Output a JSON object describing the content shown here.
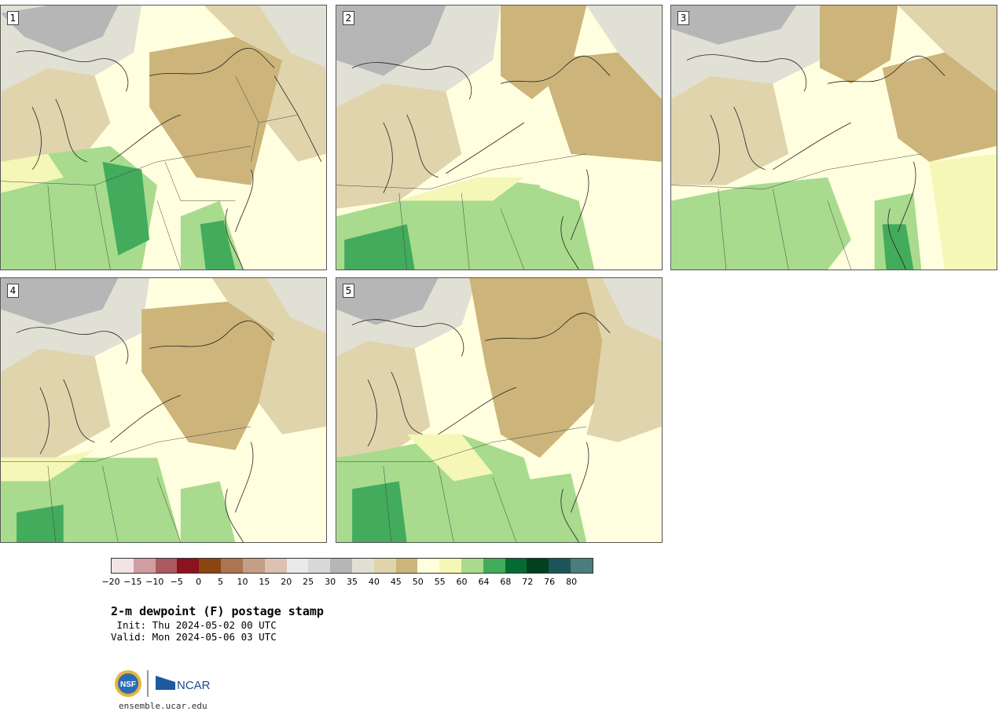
{
  "panels": [
    {
      "label": "1"
    },
    {
      "label": "2"
    },
    {
      "label": "3"
    },
    {
      "label": "4"
    },
    {
      "label": "5"
    }
  ],
  "colorbar": {
    "colors": [
      "#f2e4e4",
      "#d09ea2",
      "#ad5960",
      "#8b121e",
      "#8b4513",
      "#aa7550",
      "#c49e85",
      "#dcc0b2",
      "#eaeaea",
      "#d8d8d8",
      "#b6b6b6",
      "#e0e0d5",
      "#e0d4ad",
      "#cdb47a",
      "#ffffdf",
      "#f4f7b6",
      "#a8db8d",
      "#43ab5c",
      "#046b33",
      "#02401f",
      "#1d5459",
      "#4c7c7c"
    ],
    "ticks": [
      "−20",
      "−15",
      "−10",
      "−5",
      "0",
      "5",
      "10",
      "15",
      "20",
      "25",
      "30",
      "35",
      "40",
      "45",
      "50",
      "55",
      "60",
      "64",
      "68",
      "72",
      "76",
      "80"
    ]
  },
  "title": "2-m dewpoint (F) postage stamp",
  "init": " Init: Thu 2024-05-02 00 UTC",
  "valid": "Valid: Mon 2024-05-06 03 UTC",
  "logo": {
    "nsf": "NSF",
    "ncar": "NCAR"
  },
  "site": "ensemble.ucar.edu"
}
